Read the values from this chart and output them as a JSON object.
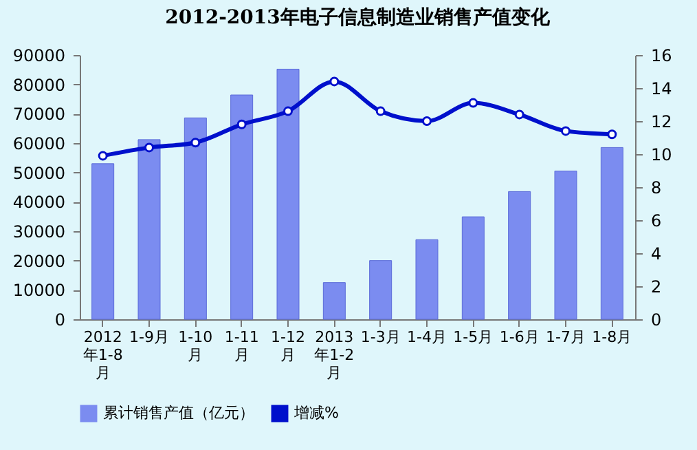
{
  "chart_data": {
    "type": "bar",
    "title": "2012-2013年电子信息制造业销售产值变化",
    "categories": [
      "2012年1-8月",
      "1-9月",
      "1-10月",
      "1-11月",
      "1-12月",
      "2013年1-2月",
      "1-3月",
      "1-4月",
      "1-5月",
      "1-6月",
      "1-7月",
      "1-8月"
    ],
    "series": [
      {
        "name": "累计销售产值（亿元）",
        "color": "#7b8cf0",
        "values": [
          53000,
          61200,
          68600,
          76400,
          85200,
          12500,
          20000,
          27100,
          34900,
          43500,
          50500,
          58500
        ]
      },
      {
        "name": "增减%",
        "type": "line",
        "axis": "y2",
        "color": "#0010cc",
        "marker": "circle",
        "values": [
          9.9,
          10.4,
          10.7,
          11.8,
          12.6,
          14.4,
          12.6,
          12.0,
          13.1,
          12.4,
          11.4,
          11.2
        ]
      }
    ],
    "ylim": [
      0,
      90000
    ],
    "yticks": [
      0,
      10000,
      20000,
      30000,
      40000,
      50000,
      60000,
      70000,
      80000,
      90000
    ],
    "y2lim": [
      0,
      16
    ],
    "y2ticks": [
      0,
      2,
      4,
      6,
      8,
      10,
      12,
      14,
      16
    ],
    "legend": "bottom",
    "grid": false
  }
}
